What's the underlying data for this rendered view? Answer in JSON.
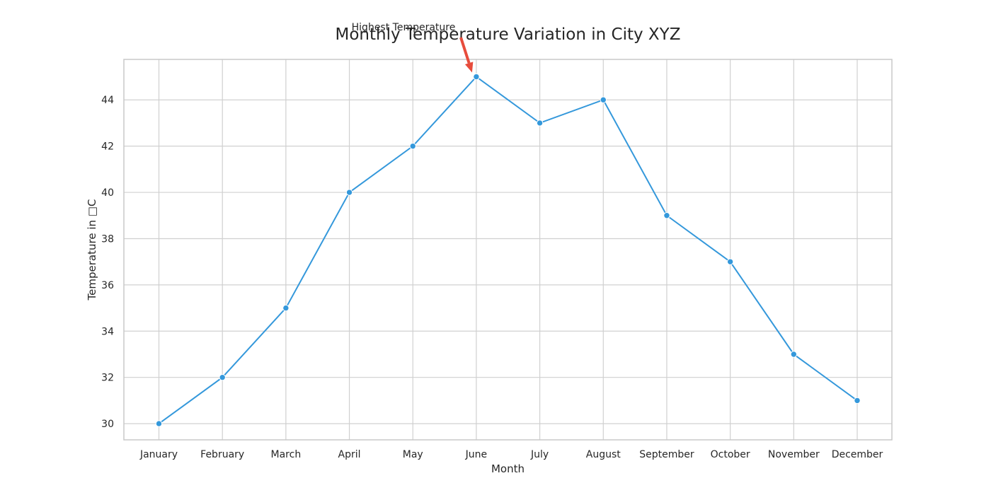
{
  "chart_data": {
    "type": "line",
    "title": "Monthly Temperature Variation in City XYZ",
    "xlabel": "Month",
    "ylabel": "Temperature in □C",
    "categories": [
      "January",
      "February",
      "March",
      "April",
      "May",
      "June",
      "July",
      "August",
      "September",
      "October",
      "November",
      "December"
    ],
    "values": [
      30,
      32,
      35,
      40,
      42,
      45,
      43,
      44,
      39,
      37,
      33,
      31
    ],
    "ylim": [
      29.3,
      45.75
    ],
    "yticks": [
      30,
      32,
      34,
      36,
      38,
      40,
      42,
      44
    ],
    "grid": true,
    "annotation": {
      "text": "Highest Temperature",
      "target_category": "June",
      "target_value": 45,
      "arrow_color": "#e74c3c"
    },
    "line_color": "#3498db"
  }
}
